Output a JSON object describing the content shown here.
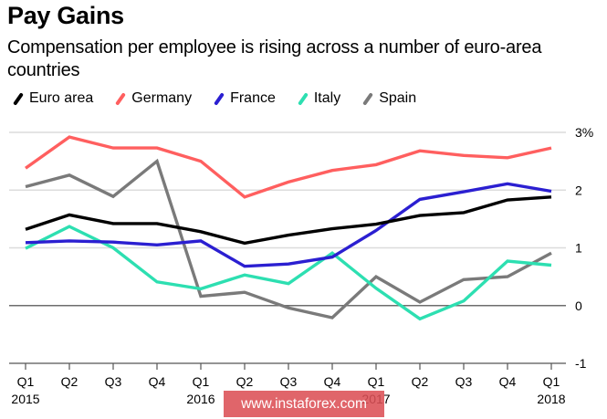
{
  "chart_data": {
    "type": "line",
    "title": "Pay Gains",
    "subtitle": "Compensation per employee is rising across a number of euro-area countries",
    "xlabel": "",
    "ylabel": "",
    "x": [
      "Q1 2015",
      "Q2 2015",
      "Q3 2015",
      "Q4 2015",
      "Q1 2016",
      "Q2 2016",
      "Q3 2016",
      "Q4 2016",
      "Q1 2017",
      "Q2 2017",
      "Q3 2017",
      "Q4 2017",
      "Q1 2018"
    ],
    "x_tick_labels": [
      {
        "quarter": "Q1",
        "year": "2015"
      },
      {
        "quarter": "Q2",
        "year": ""
      },
      {
        "quarter": "Q3",
        "year": ""
      },
      {
        "quarter": "Q4",
        "year": ""
      },
      {
        "quarter": "Q1",
        "year": "2016"
      },
      {
        "quarter": "Q2",
        "year": ""
      },
      {
        "quarter": "Q3",
        "year": ""
      },
      {
        "quarter": "Q4",
        "year": ""
      },
      {
        "quarter": "Q1",
        "year": "2017"
      },
      {
        "quarter": "Q2",
        "year": ""
      },
      {
        "quarter": "Q3",
        "year": ""
      },
      {
        "quarter": "Q4",
        "year": ""
      },
      {
        "quarter": "Q1",
        "year": "2018"
      }
    ],
    "ylim": [
      -1,
      3
    ],
    "y_ticks": [
      {
        "value": 3,
        "label": "3%"
      },
      {
        "value": 2,
        "label": "2"
      },
      {
        "value": 1,
        "label": "1"
      },
      {
        "value": 0,
        "label": "0"
      },
      {
        "value": -1,
        "label": "-1"
      }
    ],
    "grid": true,
    "legend_position": "top-left",
    "series": [
      {
        "name": "Euro area",
        "color": "#000000",
        "values": [
          1.32,
          1.57,
          1.42,
          1.42,
          1.28,
          1.08,
          1.22,
          1.33,
          1.41,
          1.56,
          1.61,
          1.83,
          1.88
        ]
      },
      {
        "name": "Germany",
        "color": "#ff5f5f",
        "values": [
          2.38,
          2.92,
          2.73,
          2.73,
          2.5,
          1.88,
          2.14,
          2.34,
          2.44,
          2.68,
          2.6,
          2.56,
          2.73
        ]
      },
      {
        "name": "France",
        "color": "#2b1fd1",
        "values": [
          1.09,
          1.12,
          1.1,
          1.05,
          1.12,
          0.68,
          0.72,
          0.84,
          1.3,
          1.84,
          1.97,
          2.11,
          1.98
        ]
      },
      {
        "name": "Italy",
        "color": "#2ddfb1",
        "values": [
          0.99,
          1.37,
          1.0,
          0.41,
          0.29,
          0.53,
          0.38,
          0.91,
          0.3,
          -0.23,
          0.08,
          0.77,
          0.7
        ]
      },
      {
        "name": "Spain",
        "color": "#7a7a7a",
        "values": [
          2.06,
          2.26,
          1.89,
          2.5,
          0.16,
          0.23,
          -0.04,
          -0.21,
          0.5,
          0.06,
          0.45,
          0.5,
          0.91
        ]
      }
    ]
  },
  "watermark": "www.instaforex.com",
  "colors": {
    "gridline": "#dcdcdc",
    "zero_line": "#6e6e6e",
    "axis_line": "#555555"
  }
}
